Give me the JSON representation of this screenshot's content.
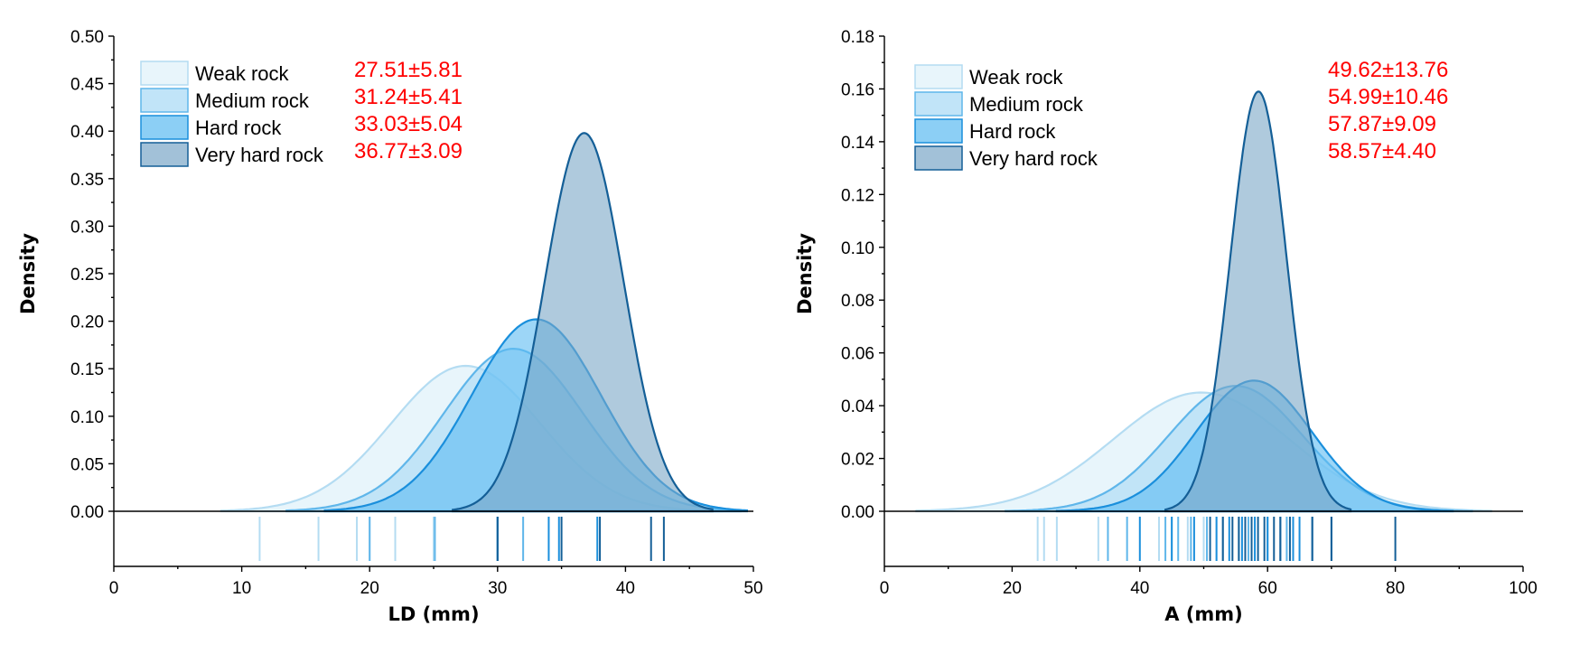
{
  "colors": {
    "stat_text": "#ff0000",
    "series": {
      "weak": {
        "fill": "#d6ecf8",
        "stroke": "#b4dcf2"
      },
      "medium": {
        "fill": "#a6d8f5",
        "stroke": "#5fb6ea"
      },
      "hard": {
        "fill": "#5bbaf1",
        "stroke": "#1a8fdc"
      },
      "veryhard": {
        "fill": "#7aa7c7",
        "stroke": "#145f97"
      }
    }
  },
  "chart_data": [
    {
      "type": "area",
      "xlabel": "LD (mm)",
      "ylabel": "Density",
      "xlim": [
        0,
        50
      ],
      "ylim": [
        0,
        0.5
      ],
      "xticks": [
        "0",
        "10",
        "20",
        "30",
        "40",
        "50"
      ],
      "yticks": [
        "0.00",
        "0.05",
        "0.10",
        "0.15",
        "0.20",
        "0.25",
        "0.30",
        "0.35",
        "0.40",
        "0.45",
        "0.50"
      ],
      "legend_position": "top-left",
      "series": [
        {
          "name": "Weak rock",
          "key": "weak",
          "mean": 27.51,
          "sd": 5.81,
          "stat_label": "27.51±5.81",
          "peak": 0.153,
          "range": [
            8.4,
            47.5
          ],
          "rug": [
            11.4,
            16.0,
            19.0,
            20.0,
            22.0,
            25.0
          ]
        },
        {
          "name": "Medium rock",
          "key": "medium",
          "mean": 31.24,
          "sd": 5.41,
          "stat_label": "31.24±5.41",
          "peak": 0.171,
          "range": [
            13.5,
            49.0
          ],
          "rug": [
            20.0,
            25.1,
            30.0,
            32.0
          ]
        },
        {
          "name": "Hard rock",
          "key": "hard",
          "mean": 33.03,
          "sd": 5.04,
          "stat_label": "33.03±5.04",
          "peak": 0.202,
          "range": [
            16.5,
            49.5
          ],
          "rug": [
            30.0,
            34.0,
            34.8,
            37.8
          ]
        },
        {
          "name": "Very hard rock",
          "key": "veryhard",
          "mean": 36.77,
          "sd": 3.09,
          "stat_label": "36.77±3.09",
          "peak": 0.398,
          "range": [
            26.5,
            46.8
          ],
          "rug": [
            30.0,
            35.0,
            38.0,
            42.0,
            43.0
          ]
        }
      ]
    },
    {
      "type": "area",
      "xlabel": "A (mm)",
      "ylabel": "Density",
      "xlim": [
        0,
        100
      ],
      "ylim": [
        0,
        0.18
      ],
      "xticks": [
        "0",
        "20",
        "40",
        "60",
        "80",
        "100"
      ],
      "yticks": [
        "0.00",
        "0.02",
        "0.04",
        "0.06",
        "0.08",
        "0.10",
        "0.12",
        "0.14",
        "0.16",
        "0.18"
      ],
      "legend_position": "top-left",
      "series": [
        {
          "name": "Weak rock",
          "key": "weak",
          "mean": 49.62,
          "sd": 13.76,
          "stat_label": "49.62±13.76",
          "peak": 0.045,
          "range": [
            5,
            95
          ],
          "rug": [
            24.0,
            25.0,
            27.0,
            33.5,
            43.0,
            45.0,
            47.5,
            50.0,
            52.0
          ]
        },
        {
          "name": "Medium rock",
          "key": "medium",
          "mean": 54.99,
          "sd": 10.46,
          "stat_label": "54.99±10.46",
          "peak": 0.0475,
          "range": [
            19,
            92
          ],
          "rug": [
            35.0,
            38.0,
            44.0,
            46.0,
            48.0,
            50.5,
            53.0,
            55.5,
            57.0,
            60.0,
            63.0
          ]
        },
        {
          "name": "Hard rock",
          "key": "hard",
          "mean": 57.87,
          "sd": 9.09,
          "stat_label": "57.87±9.09",
          "peak": 0.0495,
          "range": [
            27,
            89
          ],
          "rug": [
            40.0,
            45.0,
            48.5,
            52.0,
            54.0,
            56.0,
            58.0,
            60.0,
            62.0,
            64.0,
            65.0,
            67.0,
            70.0
          ]
        },
        {
          "name": "Very hard rock",
          "key": "veryhard",
          "mean": 58.57,
          "sd": 4.4,
          "stat_label": "58.57±4.40",
          "peak": 0.159,
          "range": [
            44,
            73
          ],
          "rug": [
            51.0,
            53.0,
            54.5,
            55.5,
            56.5,
            57.5,
            58.5,
            59.5,
            61.0,
            62.0,
            63.5,
            67.0,
            70.0,
            80.0
          ]
        }
      ]
    }
  ]
}
